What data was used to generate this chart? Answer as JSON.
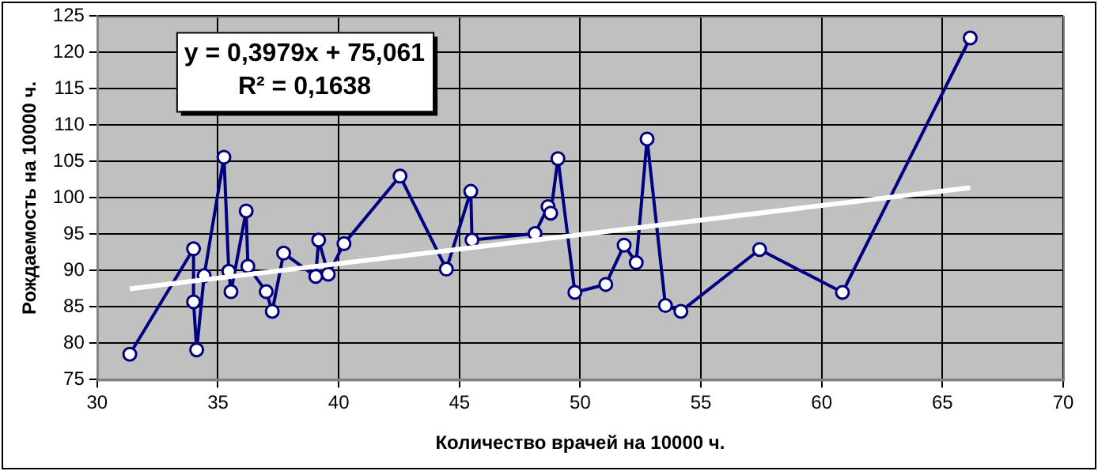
{
  "chart_data": {
    "type": "line",
    "xlabel": "Количество врачей на 10000 ч.",
    "ylabel": "Рождаемость на 10000 ч.",
    "xlim": [
      30,
      70
    ],
    "xticks": [
      30,
      35,
      40,
      45,
      50,
      55,
      60,
      65,
      70
    ],
    "ylim": [
      75,
      125
    ],
    "yticks": [
      75,
      80,
      85,
      90,
      95,
      100,
      105,
      110,
      115,
      120,
      125
    ],
    "grid": true,
    "legend": false,
    "marker": "circle",
    "line_style": "solid",
    "annotations": [
      "y = 0,3979x + 75,061",
      "R² = 0,1638"
    ],
    "series": [
      {
        "color": "#000080",
        "x": [
          31.35,
          33.99,
          33.99,
          34.12,
          34.43,
          35.25,
          35.45,
          35.54,
          36.17,
          36.24,
          37.0,
          37.25,
          37.72,
          39.05,
          39.17,
          39.57,
          40.22,
          42.54,
          44.46,
          45.47,
          45.52,
          48.13,
          48.67,
          48.78,
          49.08,
          49.78,
          51.06,
          51.82,
          52.32,
          52.77,
          53.53,
          54.17,
          57.43,
          60.86,
          66.15
        ],
        "values": [
          78.5,
          93.0,
          85.7,
          79.1,
          89.3,
          105.6,
          89.9,
          87.1,
          98.2,
          90.6,
          87.1,
          84.4,
          92.4,
          89.2,
          94.2,
          89.5,
          93.7,
          103.0,
          90.2,
          100.9,
          94.2,
          95.1,
          98.8,
          97.9,
          105.4,
          87.0,
          88.1,
          93.5,
          91.1,
          108.1,
          85.2,
          84.4,
          92.9,
          87.0,
          122.0
        ]
      },
      {
        "type": "line",
        "color": "#ffffff",
        "marker": "none",
        "x": [
          31.35,
          66.15
        ],
        "values": [
          87.5,
          101.4
        ]
      }
    ]
  }
}
